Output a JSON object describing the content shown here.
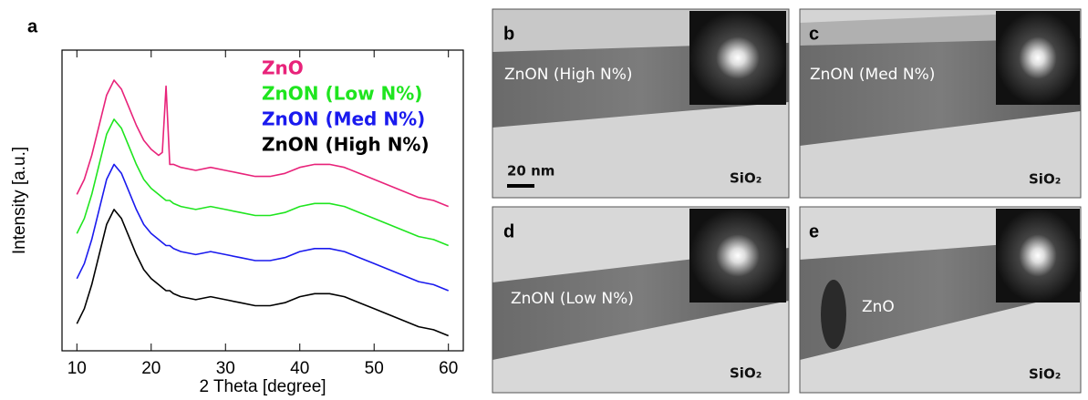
{
  "chart_data": {
    "type": "line",
    "panel_label": "a",
    "xlabel": "2 Theta [degree]",
    "ylabel": "Intensity [a.u.]",
    "xlim": [
      8,
      62
    ],
    "xticks": [
      10,
      20,
      30,
      40,
      50,
      60
    ],
    "ylim": [
      0,
      100
    ],
    "x": [
      10,
      11,
      12,
      13,
      14,
      15,
      16,
      17,
      18,
      19,
      20,
      21,
      21.5,
      22,
      22.5,
      23,
      24,
      26,
      28,
      30,
      32,
      34,
      36,
      38,
      40,
      42,
      44,
      46,
      48,
      50,
      52,
      54,
      56,
      58,
      60
    ],
    "series": [
      {
        "name": "ZnO",
        "color": "#e8237a",
        "values": [
          52,
          57,
          65,
          75,
          85,
          90,
          87,
          81,
          75,
          70,
          67,
          65,
          66,
          88,
          62,
          62,
          61,
          60,
          61,
          60,
          59,
          58,
          58,
          59,
          61,
          62,
          62,
          61,
          59,
          57,
          55,
          53,
          51,
          50,
          48
        ]
      },
      {
        "name": "ZnON (Low N%)",
        "color": "#1fe51f",
        "values": [
          39,
          44,
          52,
          62,
          72,
          77,
          74,
          68,
          62,
          57,
          54,
          52,
          51,
          50,
          50,
          49,
          48,
          47,
          48,
          47,
          46,
          45,
          45,
          46,
          48,
          49,
          49,
          48,
          46,
          44,
          42,
          40,
          38,
          37,
          35
        ]
      },
      {
        "name": "ZnON (Med N%)",
        "color": "#1a1aee",
        "values": [
          24,
          29,
          37,
          47,
          57,
          62,
          59,
          53,
          47,
          42,
          39,
          37,
          36,
          35,
          35,
          34,
          33,
          32,
          33,
          32,
          31,
          30,
          30,
          31,
          33,
          34,
          34,
          33,
          31,
          29,
          27,
          25,
          23,
          22,
          20
        ]
      },
      {
        "name": "ZnON (High N%)",
        "color": "#000000",
        "values": [
          9,
          14,
          22,
          32,
          42,
          47,
          44,
          38,
          32,
          27,
          24,
          22,
          21,
          20,
          20,
          19,
          18,
          17,
          18,
          17,
          16,
          15,
          15,
          16,
          18,
          19,
          19,
          18,
          16,
          14,
          12,
          10,
          8,
          7,
          5
        ]
      }
    ]
  },
  "panels": [
    {
      "label": "b",
      "film": "ZnON (High N%)",
      "substrate": "SiO₂",
      "scale": "20 nm"
    },
    {
      "label": "c",
      "film": "ZnON (Med N%)",
      "substrate": "SiO₂"
    },
    {
      "label": "d",
      "film": "ZnON (Low N%)",
      "substrate": "SiO₂"
    },
    {
      "label": "e",
      "film": "ZnO",
      "substrate": "SiO₂"
    }
  ]
}
